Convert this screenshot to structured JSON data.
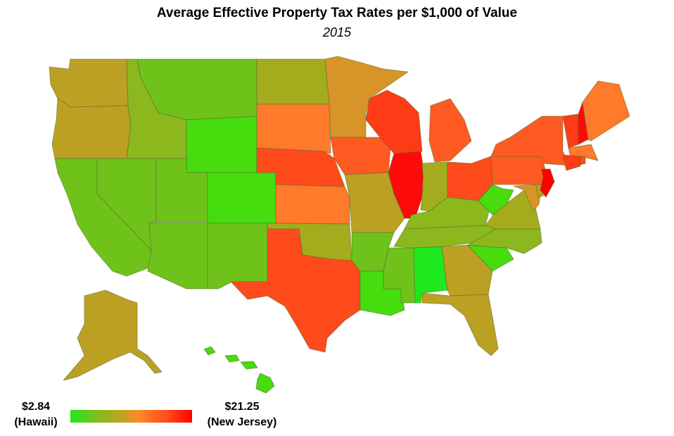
{
  "header": {
    "title": "Average Effective Property Tax Rates per $1,000 of Value",
    "subtitle": "2015"
  },
  "legend": {
    "min_value": "$2.84",
    "min_state": "(Hawaii)",
    "max_value": "$21.25",
    "max_state": "(New Jersey)",
    "min_color": "#1ee81e",
    "max_color": "#ff0000"
  },
  "colors": {
    "lowest": "#46dc0e",
    "low": "#6fc21a",
    "low_mid": "#8cb81e",
    "mid": "#a4ac1e",
    "mid_olive": "#bca024",
    "mid_high": "#d89428",
    "high": "#ff7a2a",
    "higher": "#ff5a22",
    "very_high": "#ff3a16",
    "highest": "#ff0a0a"
  }
}
